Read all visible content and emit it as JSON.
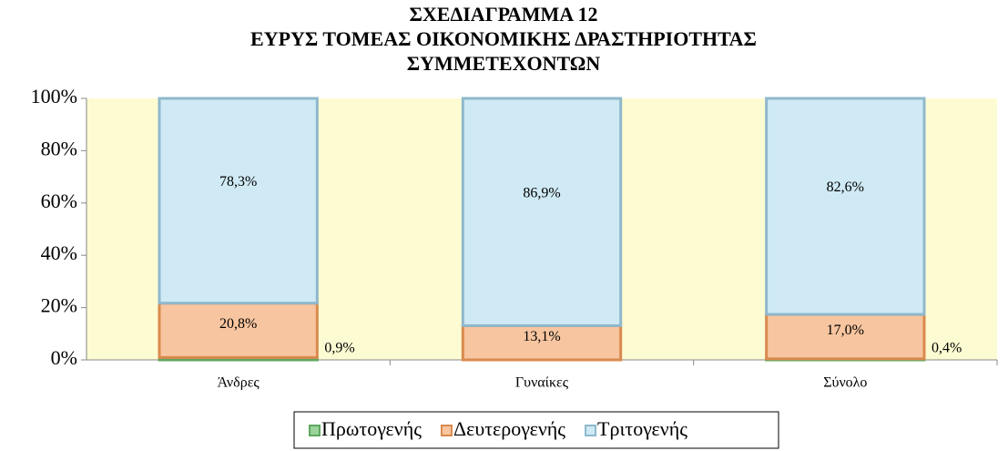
{
  "chart_data": {
    "type": "stacked-bar",
    "title": [
      "ΣΧΕΔΙΑΓΡΑΜΜΑ 12",
      "ΕΥΡΥΣ ΤΟΜΕΑΣ ΟΙΚΟΝΟΜΙΚΗΣ ΔΡΑΣΤΗΡΙΟΤΗΤΑΣ",
      "ΣΥΜΜΕΤΕΧΟΝΤΩΝ"
    ],
    "categories": [
      "Άνδρες",
      "Γυναίκες",
      "Σύνολο"
    ],
    "series": [
      {
        "name": "Πρωτογενής",
        "color": "#9bd39b",
        "values": [
          0.9,
          null,
          0.4
        ],
        "value_labels": [
          "0,9%",
          null,
          "0,4%"
        ]
      },
      {
        "name": "Δευτερογενής",
        "color": "#f7c59f",
        "values": [
          20.8,
          13.1,
          17.0
        ],
        "value_labels": [
          "20,8%",
          "13,1%",
          "17,0%"
        ]
      },
      {
        "name": "Τριτογενής",
        "color": "#cfeaf5",
        "values": [
          78.3,
          86.9,
          82.6
        ],
        "value_labels": [
          "78,3%",
          "86,9%",
          "82,6%"
        ]
      }
    ],
    "ylim": [
      0,
      100
    ],
    "yticks": [
      {
        "value": 0,
        "label": "0%"
      },
      {
        "value": 20,
        "label": "20%"
      },
      {
        "value": 40,
        "label": "40%"
      },
      {
        "value": 60,
        "label": "60%"
      },
      {
        "value": 80,
        "label": "80%"
      },
      {
        "value": 100,
        "label": "100%"
      }
    ],
    "plot_background": "#fdfbd2",
    "legend": "bottom"
  }
}
